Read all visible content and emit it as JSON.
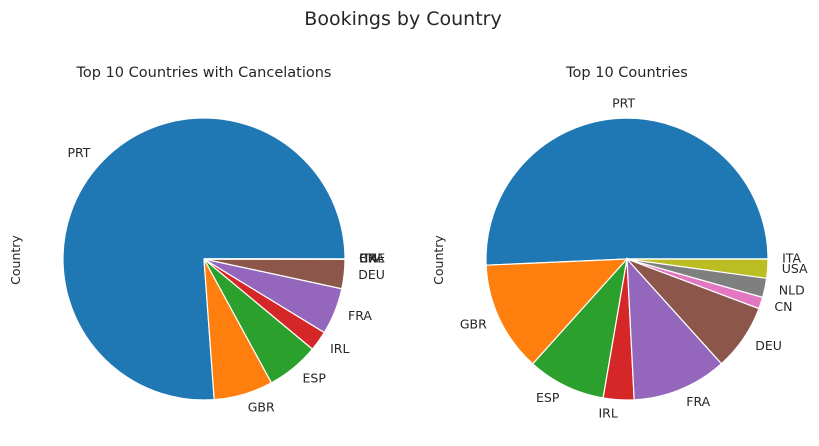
{
  "figure": {
    "title": "Bookings by Country"
  },
  "chart_data": [
    {
      "type": "pie",
      "title": "Top 10 Countries with Cancelations",
      "ylabel": "Country",
      "legend": "none",
      "start_angle_deg": 0,
      "direction": "counterclockwise",
      "categories": [
        "PRT",
        "GBR",
        "ESP",
        "IRL",
        "FRA",
        "DEU",
        "CHE",
        "BRA",
        "CN",
        "ITA"
      ],
      "values": [
        27519,
        2453,
        2177,
        832,
        1934,
        1218,
        1,
        1,
        1,
        1
      ],
      "colors": [
        "#1f77b4",
        "#ff7f0e",
        "#2ca02c",
        "#d62728",
        "#9467bd",
        "#8c564b",
        "#e377c2",
        "#7f7f7f",
        "#bcbd22",
        "#17becf"
      ]
    },
    {
      "type": "pie",
      "title": "Top 10 Countries",
      "ylabel": "Country",
      "legend": "none",
      "start_angle_deg": 0,
      "direction": "counterclockwise",
      "categories": [
        "PRT",
        "GBR",
        "ESP",
        "IRL",
        "FRA",
        "DEU",
        "CN",
        "NLD",
        "USA",
        "ITA"
      ],
      "values": [
        48590,
        12129,
        8568,
        3375,
        10415,
        7287,
        1279,
        2104,
        2097,
        1
      ],
      "colors": [
        "#1f77b4",
        "#ff7f0e",
        "#2ca02c",
        "#d62728",
        "#9467bd",
        "#8c564b",
        "#e377c2",
        "#7f7f7f",
        "#bcbd22",
        "#17becf"
      ]
    }
  ]
}
